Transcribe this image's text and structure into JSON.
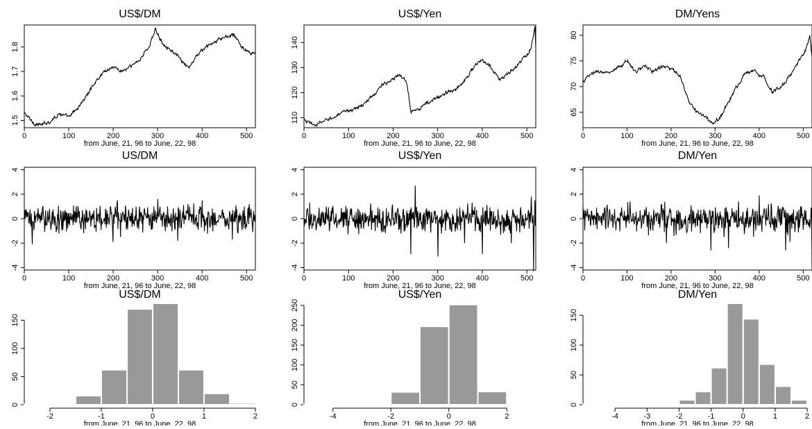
{
  "page": {
    "background": "#ffffff",
    "line_color": "#000000",
    "bar_color": "#999999",
    "bar_edge_color": "#ffffff"
  },
  "chart_data": [
    {
      "id": "usdm_level",
      "type": "line",
      "title": "US$/DM",
      "xlabel": "from June, 21, 96 to June, 22, 98",
      "ylabel": "",
      "xlim": [
        0,
        520
      ],
      "ylim": [
        1.47,
        1.89
      ],
      "xticks": [
        0,
        100,
        200,
        300,
        400,
        500
      ],
      "yticks": [
        1.5,
        1.6,
        1.7,
        1.8
      ],
      "n_points": 522,
      "x": [
        0,
        20,
        40,
        60,
        80,
        100,
        120,
        140,
        160,
        180,
        200,
        220,
        240,
        260,
        280,
        295,
        310,
        330,
        350,
        370,
        390,
        410,
        430,
        450,
        470,
        490,
        510,
        520
      ],
      "y": [
        1.53,
        1.49,
        1.48,
        1.5,
        1.53,
        1.51,
        1.55,
        1.6,
        1.66,
        1.7,
        1.72,
        1.7,
        1.72,
        1.75,
        1.8,
        1.87,
        1.82,
        1.79,
        1.75,
        1.71,
        1.77,
        1.8,
        1.82,
        1.84,
        1.85,
        1.8,
        1.77,
        1.78
      ]
    },
    {
      "id": "usyen_level",
      "type": "line",
      "title": "US$/Yen",
      "xlabel": "from June, 21, 96 to June, 22, 98",
      "ylabel": "",
      "xlim": [
        0,
        520
      ],
      "ylim": [
        106,
        147
      ],
      "xticks": [
        0,
        100,
        200,
        300,
        400,
        500
      ],
      "yticks": [
        110,
        120,
        130,
        140
      ],
      "n_points": 522,
      "x": [
        0,
        20,
        40,
        60,
        80,
        100,
        120,
        140,
        160,
        180,
        200,
        215,
        230,
        240,
        260,
        280,
        300,
        320,
        340,
        360,
        380,
        400,
        420,
        440,
        460,
        480,
        500,
        510,
        518,
        520
      ],
      "y": [
        109,
        107,
        108,
        110,
        111,
        113,
        114,
        116,
        120,
        124,
        125,
        127,
        125,
        113,
        114,
        116,
        118,
        120,
        121,
        125,
        130,
        133,
        130,
        125,
        128,
        131,
        135,
        138,
        146,
        137
      ]
    },
    {
      "id": "dmyen_level",
      "type": "line",
      "title": "DM/Yens",
      "xlabel": "from June, 21, 96 to June, 22, 98",
      "ylabel": "",
      "xlim": [
        0,
        520
      ],
      "ylim": [
        62,
        82
      ],
      "xticks": [
        0,
        100,
        200,
        300,
        400,
        500
      ],
      "yticks": [
        65,
        70,
        75,
        80
      ],
      "n_points": 522,
      "x": [
        0,
        20,
        40,
        60,
        80,
        100,
        120,
        140,
        160,
        180,
        200,
        220,
        240,
        260,
        280,
        295,
        310,
        330,
        350,
        370,
        390,
        410,
        430,
        450,
        470,
        490,
        505,
        515,
        520
      ],
      "y": [
        71,
        72.5,
        73,
        72.5,
        73.5,
        75,
        73,
        74,
        73,
        74,
        73.5,
        72,
        67,
        65,
        64,
        62.5,
        64,
        67,
        70,
        73,
        73,
        72,
        69,
        70,
        72,
        75,
        77,
        80,
        76
      ]
    },
    {
      "id": "usdm_returns",
      "type": "line",
      "title": "US/DM",
      "xlabel": "from June, 21, 96 to June, 22, 98",
      "ylabel": "",
      "xlim": [
        0,
        520
      ],
      "ylim": [
        -4.2,
        4.2
      ],
      "xticks": [
        0,
        100,
        200,
        300,
        400,
        500
      ],
      "yticks": [
        -4,
        -2,
        0,
        2,
        4
      ],
      "n_points": 522,
      "amplitude": 0.7,
      "notable_points": [
        {
          "x": 18,
          "y": -2.1
        },
        {
          "x": 42,
          "y": 1.0
        },
        {
          "x": 200,
          "y": -1.9
        },
        {
          "x": 210,
          "y": 1.5
        },
        {
          "x": 300,
          "y": 1.6
        },
        {
          "x": 345,
          "y": -1.8
        },
        {
          "x": 400,
          "y": 1.5
        },
        {
          "x": 468,
          "y": -1.7
        }
      ]
    },
    {
      "id": "usyen_returns",
      "type": "line",
      "title": "US$/Yen",
      "xlabel": "from June, 21, 96 to June, 22, 98",
      "ylabel": "",
      "xlim": [
        0,
        520
      ],
      "ylim": [
        -4.2,
        4.2
      ],
      "xticks": [
        0,
        100,
        200,
        300,
        400,
        500
      ],
      "yticks": [
        -4,
        -2,
        0,
        2,
        4
      ],
      "n_points": 522,
      "amplitude": 0.7,
      "notable_points": [
        {
          "x": 240,
          "y": -2.9
        },
        {
          "x": 250,
          "y": 2.7
        },
        {
          "x": 300,
          "y": -3.1
        },
        {
          "x": 360,
          "y": -2.0
        },
        {
          "x": 400,
          "y": -2.9
        },
        {
          "x": 465,
          "y": -2.0
        },
        {
          "x": 510,
          "y": 1.8
        },
        {
          "x": 515,
          "y": -4.3
        },
        {
          "x": 518,
          "y": 1.5
        }
      ]
    },
    {
      "id": "dmyen_returns",
      "type": "line",
      "title": "DM/Yen",
      "xlabel": "from June, 21, 96 to June, 22, 98",
      "ylabel": "",
      "xlim": [
        0,
        520
      ],
      "ylim": [
        -4.2,
        4.2
      ],
      "xticks": [
        0,
        100,
        200,
        300,
        400,
        500
      ],
      "yticks": [
        -4,
        -2,
        0,
        2,
        4
      ],
      "n_points": 522,
      "amplitude": 0.75,
      "notable_points": [
        {
          "x": 190,
          "y": -2.0
        },
        {
          "x": 290,
          "y": -2.6
        },
        {
          "x": 330,
          "y": -2.4
        },
        {
          "x": 400,
          "y": 1.9
        },
        {
          "x": 460,
          "y": -2.6
        },
        {
          "x": 470,
          "y": -1.9
        },
        {
          "x": 520,
          "y": -4.0
        }
      ]
    },
    {
      "id": "usdm_hist",
      "type": "bar",
      "title": "US$/DM",
      "xlabel": "from June, 21, 96 to June, 22, 98",
      "ylabel": "",
      "xlim": [
        -2.5,
        2.0
      ],
      "ylim": [
        0,
        180
      ],
      "xticks": [
        -2,
        -1,
        0,
        1,
        2
      ],
      "yticks": [
        0,
        50,
        100,
        150
      ],
      "bin_width": 0.5,
      "bins": [
        -2.5,
        -2.0,
        -1.5,
        -1.0,
        -0.5,
        0.0,
        0.5,
        1.0,
        1.5
      ],
      "values": [
        1,
        2,
        16,
        62,
        170,
        180,
        62,
        20,
        3
      ]
    },
    {
      "id": "usyen_hist",
      "type": "bar",
      "title": "US$/Yen",
      "xlabel": "from June, 21, 96 to June, 22, 98",
      "ylabel": "",
      "xlim": [
        -5,
        3
      ],
      "ylim": [
        0,
        255
      ],
      "xticks": [
        -4,
        -2,
        0,
        2
      ],
      "yticks": [
        0,
        50,
        100,
        150,
        200,
        250
      ],
      "bin_width": 1,
      "bins": [
        -5,
        -4,
        -3,
        -2,
        -1,
        0,
        1
      ],
      "values": [
        1,
        1,
        3,
        32,
        197,
        252,
        33
      ]
    },
    {
      "id": "dmyen_hist",
      "type": "bar",
      "title": "DM/Yen",
      "xlabel": "from June, 21, 96 to June, 22, 98",
      "ylabel": "",
      "xlim": [
        -5,
        2.15
      ],
      "ylim": [
        0,
        170
      ],
      "xticks": [
        -4,
        -3,
        -2,
        -1,
        0,
        1,
        2
      ],
      "yticks": [
        0,
        50,
        100,
        150
      ],
      "bin_width": 0.5,
      "bins": [
        -5.0,
        -4.5,
        -4.0,
        -3.5,
        -3.0,
        -2.5,
        -2.0,
        -1.5,
        -1.0,
        -0.5,
        0.0,
        0.5,
        1.0,
        1.5
      ],
      "values": [
        1,
        0,
        0,
        0,
        1,
        2,
        8,
        22,
        62,
        170,
        144,
        68,
        31,
        8
      ]
    }
  ]
}
